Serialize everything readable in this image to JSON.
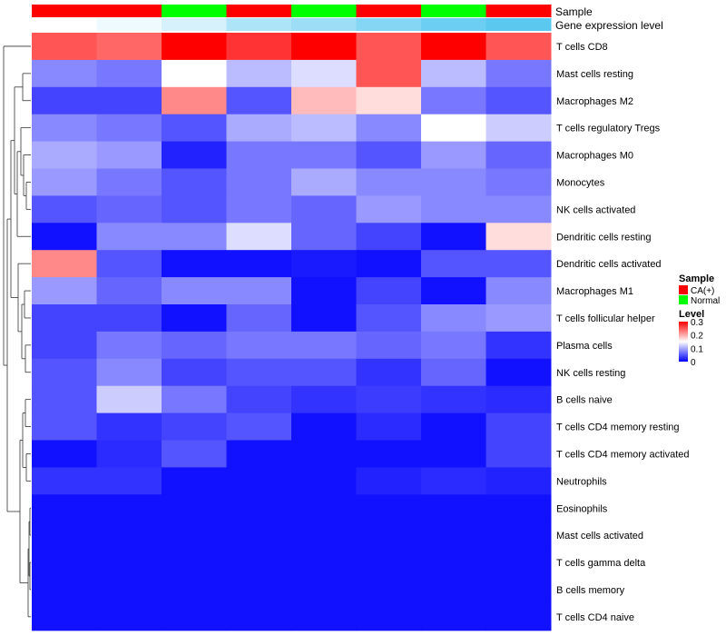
{
  "chart_data": {
    "type": "heatmap",
    "annotation_tracks": [
      {
        "name": "Sample",
        "values": [
          "CA(+)",
          "CA(+)",
          "Normal",
          "CA(+)",
          "Normal",
          "CA(+)",
          "Normal",
          "CA(+)"
        ]
      },
      {
        "name": "Gene expression level",
        "values": [
          0.0,
          0.02,
          0.05,
          0.1,
          0.12,
          0.15,
          0.18,
          0.2
        ]
      }
    ],
    "rows": [
      "T cells CD8",
      "Mast cells resting",
      "Macrophages M2",
      "T cells regulatory  Tregs",
      "Macrophages M0",
      "Monocytes",
      "NK cells activated",
      "Dendritic cells resting",
      "Dendritic cells activated",
      "Macrophages M1",
      "T cells follicular helper",
      "Plasma cells",
      "NK cells resting",
      "B cells naive",
      "T cells CD4 memory resting",
      "T cells CD4 memory activated",
      "Neutrophils",
      "Eosinophils",
      "Mast cells activated",
      "T cells gamma delta",
      "B cells memory",
      "T cells CD4 naive"
    ],
    "values": [
      [
        0.25,
        0.24,
        0.3,
        0.27,
        0.3,
        0.25,
        0.3,
        0.25
      ],
      [
        0.08,
        0.07,
        0.15,
        0.11,
        0.13,
        0.25,
        0.11,
        0.07
      ],
      [
        0.04,
        0.04,
        0.22,
        0.05,
        0.19,
        0.17,
        0.07,
        0.05
      ],
      [
        0.08,
        0.07,
        0.05,
        0.1,
        0.11,
        0.08,
        0.15,
        0.12
      ],
      [
        0.1,
        0.09,
        0.02,
        0.07,
        0.07,
        0.05,
        0.09,
        0.06
      ],
      [
        0.09,
        0.07,
        0.05,
        0.07,
        0.1,
        0.08,
        0.08,
        0.07
      ],
      [
        0.05,
        0.06,
        0.05,
        0.07,
        0.06,
        0.09,
        0.08,
        0.08
      ],
      [
        0.01,
        0.08,
        0.08,
        0.13,
        0.06,
        0.04,
        0.01,
        0.17
      ],
      [
        0.22,
        0.05,
        0.01,
        0.01,
        0.015,
        0.01,
        0.05,
        0.05
      ],
      [
        0.09,
        0.06,
        0.08,
        0.08,
        0.01,
        0.04,
        0.01,
        0.08
      ],
      [
        0.04,
        0.04,
        0.01,
        0.06,
        0.01,
        0.05,
        0.08,
        0.09
      ],
      [
        0.04,
        0.07,
        0.06,
        0.07,
        0.07,
        0.06,
        0.07,
        0.03
      ],
      [
        0.05,
        0.08,
        0.04,
        0.05,
        0.05,
        0.03,
        0.06,
        0.01
      ],
      [
        0.05,
        0.12,
        0.07,
        0.04,
        0.03,
        0.035,
        0.03,
        0.025
      ],
      [
        0.05,
        0.03,
        0.04,
        0.05,
        0.01,
        0.025,
        0.01,
        0.04
      ],
      [
        0.01,
        0.025,
        0.05,
        0.01,
        0.01,
        0.01,
        0.01,
        0.04
      ],
      [
        0.03,
        0.03,
        0.01,
        0.01,
        0.01,
        0.02,
        0.025,
        0.02
      ],
      [
        0.01,
        0.01,
        0.01,
        0.01,
        0.01,
        0.01,
        0.01,
        0.01
      ],
      [
        0.01,
        0.01,
        0.01,
        0.01,
        0.01,
        0.01,
        0.01,
        0.01
      ],
      [
        0.01,
        0.01,
        0.01,
        0.01,
        0.01,
        0.01,
        0.01,
        0.01
      ],
      [
        0.01,
        0.01,
        0.01,
        0.01,
        0.01,
        0.01,
        0.01,
        0.01
      ],
      [
        0.01,
        0.01,
        0.01,
        0.01,
        0.01,
        0.01,
        0.01,
        0.01
      ]
    ],
    "color_scale": {
      "low": "#0000ff",
      "mid": "#ffffff",
      "high": "#ff0000",
      "range": [
        0,
        0.3
      ]
    },
    "legend": {
      "placement": "right",
      "sample": {
        "title": "Sample",
        "items": [
          {
            "label": "CA(+)",
            "color": "#ff0000"
          },
          {
            "label": "Normal",
            "color": "#00ff00"
          }
        ]
      },
      "level": {
        "title": "Level",
        "ticks": [
          "0.3",
          "0.2",
          "0.1",
          "0"
        ],
        "tick_values": [
          0.3,
          0.2,
          0.1,
          0
        ]
      }
    },
    "gene_expression_colors": {
      "low": "#ffffff",
      "high": "#5bc8f0"
    },
    "dendrogram": "left"
  }
}
